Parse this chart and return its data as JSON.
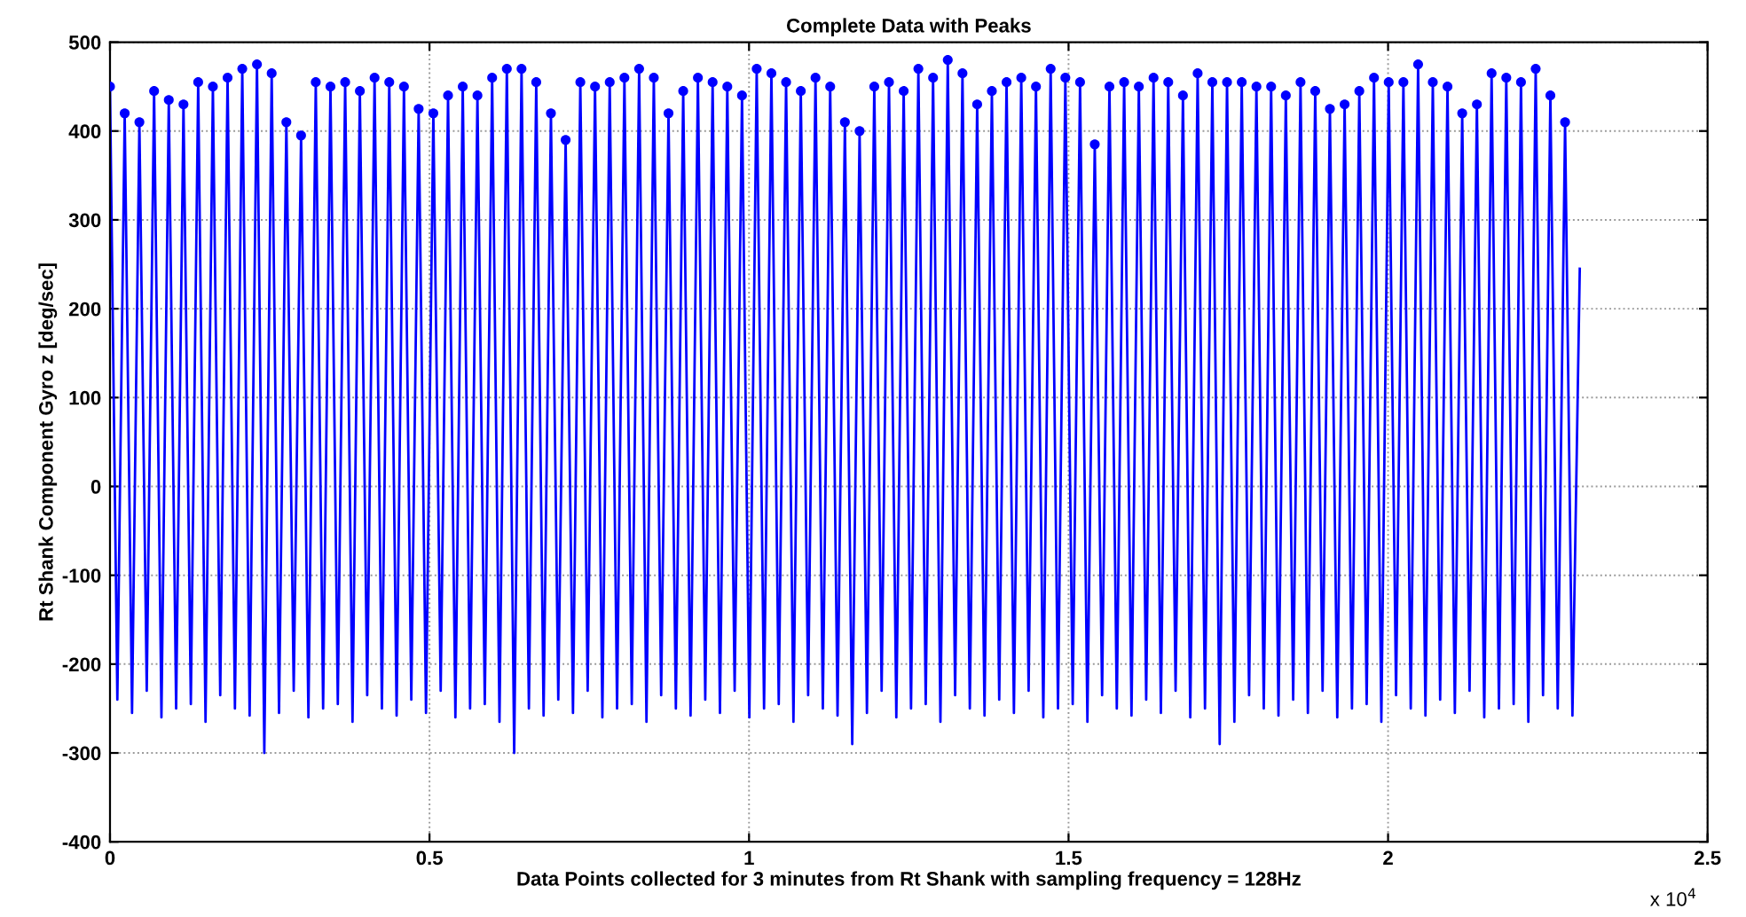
{
  "chart_data": {
    "type": "line",
    "title": "Complete Data with Peaks",
    "xlabel": "Data Points collected for 3 minutes from Rt Shank with sampling frequency = 128Hz",
    "ylabel": "Rt Shank Component Gyro z [deg/sec]",
    "annotations": [
      "x 10$^{4}$"
    ],
    "x": [
      0,
      0.0115,
      0.023,
      0.0345,
      0.046,
      0.0575,
      0.069,
      0.0805,
      0.092,
      0.1035,
      0.115,
      0.1265,
      0.138,
      0.1495,
      0.161,
      0.1725,
      0.184,
      0.1955,
      0.207,
      0.2185,
      0.23,
      0.2415,
      0.253,
      0.2645,
      0.276,
      0.2875,
      0.299,
      0.3105,
      0.322,
      0.3335,
      0.345,
      0.3565,
      0.368,
      0.3795,
      0.391,
      0.4025,
      0.414,
      0.4255,
      0.437,
      0.4485,
      0.46,
      0.4715,
      0.483,
      0.4945,
      0.506,
      0.5175,
      0.529,
      0.5405,
      0.552,
      0.5635,
      0.575,
      0.5865,
      0.598,
      0.6095,
      0.621,
      0.6325,
      0.644,
      0.6555,
      0.667,
      0.6785,
      0.69,
      0.7015,
      0.713,
      0.7245,
      0.736,
      0.7475,
      0.759,
      0.7705,
      0.782,
      0.7935,
      0.805,
      0.8165,
      0.828,
      0.8395,
      0.851,
      0.8625,
      0.874,
      0.8855,
      0.897,
      0.9085,
      0.92,
      0.9315,
      0.943,
      0.9545,
      0.966,
      0.9775,
      0.989,
      1.0005,
      1.012,
      1.0235,
      1.035,
      1.0465,
      1.058,
      1.0695,
      1.081,
      1.0925,
      1.104,
      1.1155,
      1.127,
      1.1385,
      1.15,
      1.1615,
      1.173,
      1.1845,
      1.196,
      1.2075,
      1.219,
      1.2305,
      1.242,
      1.2535,
      1.265,
      1.2765,
      1.288,
      1.2995,
      1.311,
      1.3225,
      1.334,
      1.3455,
      1.357,
      1.3685,
      1.38,
      1.3915,
      1.403,
      1.4145,
      1.426,
      1.4375,
      1.449,
      1.4605,
      1.472,
      1.4835,
      1.495,
      1.5065,
      1.518,
      1.5295,
      1.541,
      1.5525,
      1.564,
      1.5755,
      1.587,
      1.5985,
      1.61,
      1.6215,
      1.633,
      1.6445,
      1.656,
      1.6675,
      1.679,
      1.6905,
      1.702,
      1.7135,
      1.725,
      1.7365,
      1.748,
      1.7595,
      1.771,
      1.7825,
      1.794,
      1.8055,
      1.817,
      1.8285,
      1.84,
      1.8515,
      1.863,
      1.8745,
      1.886,
      1.8975,
      1.909,
      1.9205,
      1.932,
      1.9435,
      1.955,
      1.9665,
      1.978,
      1.9895,
      2.001,
      2.0125,
      2.024,
      2.0355,
      2.047,
      2.0585,
      2.07,
      2.0815,
      2.093,
      2.1045,
      2.116,
      2.1275,
      2.139,
      2.1505,
      2.162,
      2.1735,
      2.185,
      2.1965,
      2.208,
      2.2195,
      2.231,
      2.2425,
      2.254,
      2.2655,
      2.277,
      2.2885,
      2.3
    ],
    "series": [
      {
        "color": "#0000ff",
        "line_style": "solid",
        "values": [
          450,
          -240,
          420,
          -255,
          410,
          -230,
          445,
          -260,
          435,
          -250,
          430,
          -245,
          455,
          -265,
          450,
          -235,
          460,
          -250,
          470,
          -258,
          475,
          -300,
          465,
          -255,
          410,
          -230,
          395,
          -260,
          455,
          -250,
          450,
          -245,
          455,
          -265,
          445,
          -235,
          460,
          -250,
          455,
          -258,
          450,
          -240,
          425,
          -255,
          420,
          -230,
          440,
          -260,
          450,
          -250,
          440,
          -245,
          460,
          -265,
          470,
          -300,
          470,
          -250,
          455,
          -258,
          420,
          -240,
          390,
          -255,
          455,
          -230,
          450,
          -260,
          455,
          -250,
          460,
          -245,
          470,
          -265,
          460,
          -235,
          420,
          -250,
          445,
          -258,
          460,
          -240,
          455,
          -255,
          450,
          -230,
          440,
          -260,
          470,
          -250,
          465,
          -245,
          455,
          -265,
          445,
          -235,
          460,
          -250,
          450,
          -258,
          410,
          -290,
          400,
          -255,
          450,
          -230,
          455,
          -260,
          445,
          -250,
          470,
          -245,
          460,
          -265,
          480,
          -235,
          465,
          -250,
          430,
          -258,
          445,
          -240,
          455,
          -255,
          460,
          -230,
          450,
          -260,
          470,
          -250,
          460,
          -245,
          455,
          -265,
          385,
          -235,
          450,
          -250,
          455,
          -258,
          450,
          -240,
          460,
          -255,
          455,
          -230,
          440,
          -260,
          465,
          -250,
          455,
          -290,
          455,
          -265,
          455,
          -235,
          450,
          -250,
          450,
          -258,
          440,
          -240,
          455,
          -255,
          445,
          -230,
          425,
          -260,
          430,
          -250,
          445,
          -245,
          460,
          -265,
          455,
          -235,
          455,
          -250,
          475,
          -258,
          455,
          -240,
          450,
          -255,
          420,
          -230,
          430,
          -260,
          465,
          -250,
          460,
          -245,
          455,
          -265,
          470,
          -235,
          440,
          -250,
          410,
          -258,
          245
        ]
      },
      {
        "type": "scatter",
        "color": "#0000ff",
        "marker": "circle",
        "x": [
          0,
          0.023,
          0.046,
          0.069,
          0.092,
          0.115,
          0.138,
          0.161,
          0.184,
          0.207,
          0.23,
          0.253,
          0.276,
          0.299,
          0.322,
          0.345,
          0.368,
          0.391,
          0.414,
          0.437,
          0.46,
          0.483,
          0.506,
          0.529,
          0.552,
          0.575,
          0.598,
          0.621,
          0.644,
          0.667,
          0.69,
          0.713,
          0.736,
          0.759,
          0.782,
          0.805,
          0.828,
          0.851,
          0.874,
          0.897,
          0.92,
          0.943,
          0.966,
          0.989,
          1.012,
          1.035,
          1.058,
          1.081,
          1.104,
          1.127,
          1.15,
          1.173,
          1.196,
          1.219,
          1.242,
          1.265,
          1.288,
          1.311,
          1.334,
          1.357,
          1.38,
          1.403,
          1.426,
          1.449,
          1.472,
          1.495,
          1.518,
          1.541,
          1.564,
          1.587,
          1.61,
          1.633,
          1.656,
          1.679,
          1.702,
          1.725,
          1.748,
          1.771,
          1.794,
          1.817,
          1.84,
          1.863,
          1.886,
          1.909,
          1.932,
          1.955,
          1.978,
          2.001,
          2.024,
          2.047,
          2.07,
          2.093,
          2.116,
          2.139,
          2.162,
          2.185,
          2.208,
          2.231,
          2.254,
          2.277
        ],
        "values": [
          450,
          420,
          410,
          445,
          435,
          430,
          455,
          450,
          460,
          470,
          475,
          465,
          410,
          395,
          455,
          450,
          455,
          445,
          460,
          455,
          450,
          425,
          420,
          440,
          450,
          440,
          460,
          470,
          470,
          455,
          420,
          390,
          455,
          450,
          455,
          460,
          470,
          460,
          420,
          445,
          460,
          455,
          450,
          440,
          470,
          465,
          455,
          445,
          460,
          450,
          410,
          400,
          450,
          455,
          445,
          470,
          460,
          480,
          465,
          430,
          445,
          455,
          460,
          450,
          470,
          460,
          455,
          385,
          450,
          455,
          450,
          460,
          455,
          440,
          465,
          455,
          455,
          455,
          450,
          450,
          440,
          455,
          445,
          425,
          430,
          445,
          460,
          455,
          455,
          475,
          455,
          450,
          420,
          430,
          465,
          460,
          455,
          470,
          440,
          410
        ]
      }
    ],
    "xlim": [
      0,
      2.5
    ],
    "xticks": [
      0,
      0.5,
      1,
      1.5,
      2,
      2.5
    ],
    "ylim": [
      -400,
      500
    ],
    "yticks": [
      -400,
      -300,
      -200,
      -100,
      0,
      100,
      200,
      300,
      400,
      500
    ],
    "grid": true
  }
}
